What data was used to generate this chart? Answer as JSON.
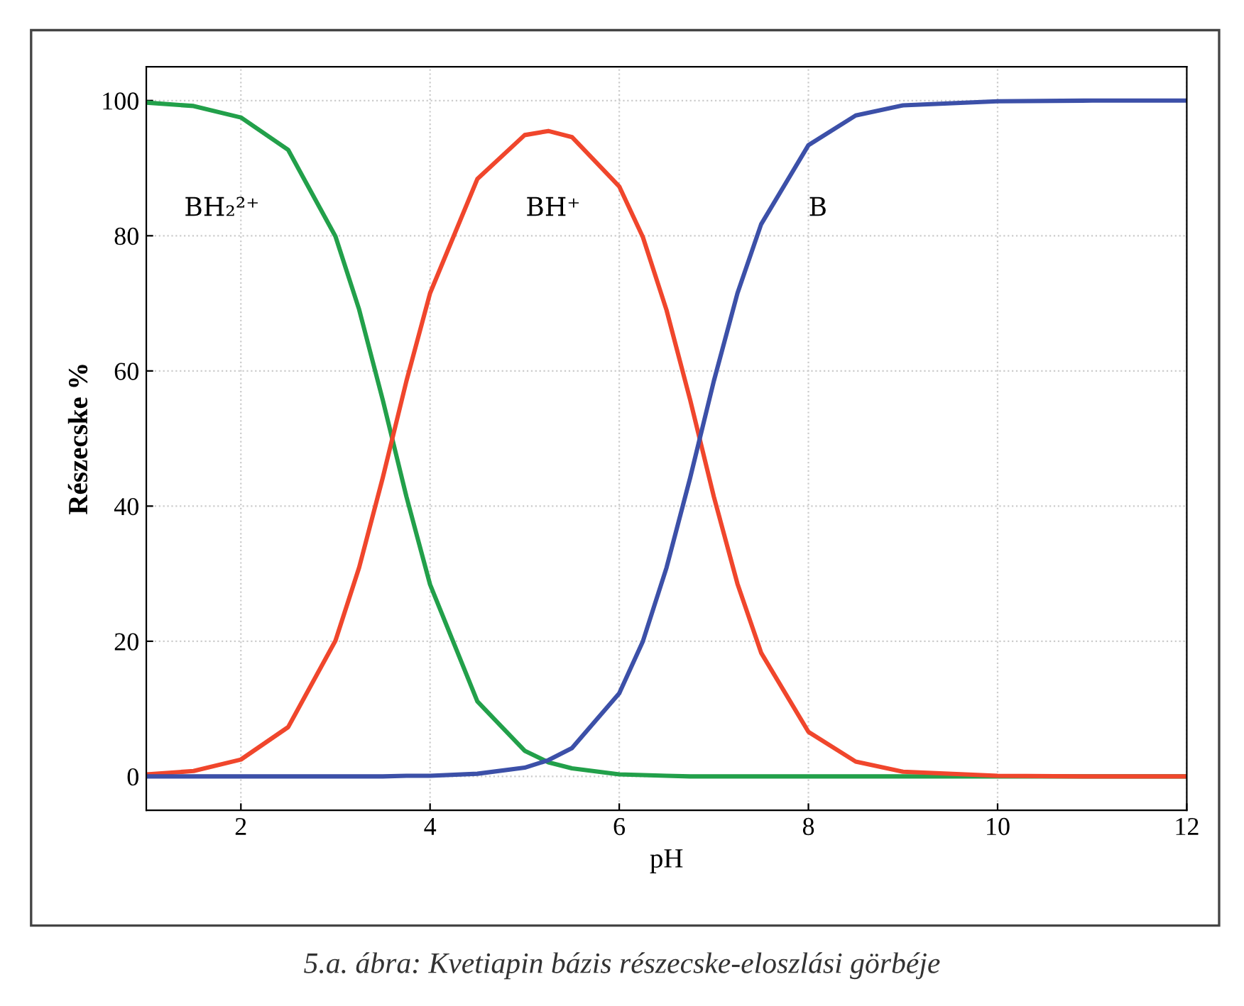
{
  "chart_data": {
    "type": "line",
    "xlabel": "pH",
    "ylabel": "Részecske %",
    "x": [
      1,
      1.5,
      2,
      2.5,
      3,
      3.25,
      3.5,
      3.75,
      4,
      4.5,
      5,
      5.25,
      5.5,
      6,
      6.25,
      6.5,
      6.75,
      7,
      7.25,
      7.5,
      8,
      8.5,
      9,
      10,
      11,
      12
    ],
    "series": [
      {
        "name": "BH₂²⁺",
        "color": "#22a04a",
        "values": [
          99.7,
          99.2,
          97.5,
          92.7,
          79.9,
          69.1,
          55.7,
          41.4,
          28.4,
          11.1,
          3.8,
          2.1,
          1.2,
          0.3,
          0.2,
          0.1,
          0,
          0,
          0,
          0,
          0,
          0,
          0,
          0,
          0,
          0
        ]
      },
      {
        "name": "BH⁺",
        "color": "#f0462c",
        "values": [
          0.3,
          0.8,
          2.5,
          7.3,
          20.1,
          30.9,
          44.2,
          58.5,
          71.5,
          88.4,
          94.9,
          95.5,
          94.6,
          87.3,
          79.8,
          69.0,
          55.7,
          41.4,
          28.5,
          18.3,
          6.6,
          2.2,
          0.7,
          0.1,
          0,
          0
        ]
      },
      {
        "name": "B",
        "color": "#3c50a8",
        "values": [
          0,
          0,
          0,
          0,
          0,
          0,
          0,
          0.1,
          0.1,
          0.4,
          1.3,
          2.4,
          4.2,
          12.3,
          20.0,
          30.9,
          44.2,
          58.5,
          71.5,
          81.7,
          93.4,
          97.8,
          99.3,
          99.9,
          100,
          100
        ]
      }
    ],
    "xlim": [
      1,
      12
    ],
    "xticks": [
      2,
      4,
      6,
      8,
      10,
      12
    ],
    "ylim": [
      -5,
      105
    ],
    "yticks": [
      0,
      20,
      40,
      60,
      80,
      100
    ],
    "grid": true,
    "marker": "none",
    "line_style": "solid",
    "annotations": [
      "5.a. ábra: Kvetiapin bázis részecske-eloszlási görbéje"
    ]
  }
}
